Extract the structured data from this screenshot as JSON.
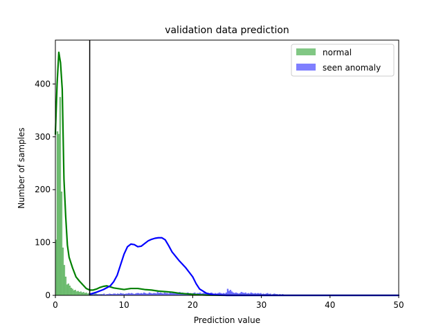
{
  "chart_data": {
    "type": "histogram",
    "title": "validation data prediction",
    "xlabel": "Prediction value",
    "ylabel": "Number of samples",
    "xlim": [
      0,
      50
    ],
    "ylim": [
      0,
      483
    ],
    "xticks": [
      0,
      10,
      20,
      30,
      40,
      50
    ],
    "yticks": [
      0,
      100,
      200,
      300,
      400
    ],
    "grid": false,
    "legend_position": "top-right",
    "threshold_line": {
      "x": 5.0,
      "color": "#000000"
    },
    "series": [
      {
        "name": "normal",
        "color": "#008000",
        "bar_color": "#81c784",
        "bars": {
          "bin_width": 0.2,
          "start": 0.0,
          "heights": [
            105,
            310,
            305,
            375,
            196,
            90,
            57,
            35,
            20,
            22,
            18,
            14,
            12,
            9,
            10,
            7,
            8,
            6,
            7,
            5,
            6,
            4,
            5,
            3,
            4,
            2,
            3,
            2,
            4,
            3,
            2,
            1,
            1,
            2,
            1,
            1,
            0,
            1,
            1,
            1,
            2,
            1,
            2,
            1,
            1,
            3,
            2,
            1,
            3,
            2,
            2,
            1,
            2,
            1,
            1,
            0,
            1,
            1,
            3,
            1,
            2,
            2,
            1,
            1,
            1,
            1,
            2,
            1,
            1,
            1,
            1,
            2,
            1,
            3,
            2,
            3,
            1,
            2,
            1,
            1
          ]
        },
        "kde": {
          "x": [
            0.0,
            0.25,
            0.5,
            0.75,
            1.0,
            1.25,
            1.5,
            1.75,
            2.0,
            2.5,
            3.0,
            3.5,
            4.0,
            4.5,
            5.0,
            5.5,
            6.0,
            6.5,
            7.0,
            7.5,
            8.0,
            8.5,
            9.0,
            10.0,
            11.0,
            12.0,
            13.0,
            14.0,
            15.0,
            16.0,
            17.0,
            18.0,
            19.0,
            20.0,
            21.0,
            22.0,
            25.0,
            30.0,
            40.0,
            50.0
          ],
          "y": [
            305,
            400,
            460,
            440,
            390,
            220,
            150,
            95,
            72,
            52,
            35,
            27,
            20,
            13,
            10,
            10,
            12,
            15,
            17,
            18,
            16,
            14,
            13,
            11,
            13,
            13,
            11,
            10,
            8,
            7,
            6,
            4,
            3,
            2,
            1,
            0.5,
            0,
            0,
            0,
            0
          ]
        }
      },
      {
        "name": "seen anomaly",
        "color": "#0000ff",
        "bar_color": "#7f7fff",
        "bars": {
          "bin_width": 0.2,
          "start": 5.0,
          "heights": [
            1,
            1,
            2,
            1,
            2,
            1,
            2,
            2,
            1,
            2,
            3,
            1,
            2,
            2,
            3,
            2,
            2,
            3,
            3,
            2,
            3,
            2,
            4,
            3,
            3,
            2,
            3,
            3,
            4,
            3,
            4,
            3,
            2,
            3,
            4,
            4,
            3,
            4,
            3,
            5,
            4,
            3,
            3,
            5,
            4,
            3,
            4,
            4,
            3,
            6,
            4,
            5,
            4,
            3,
            5,
            4,
            4,
            3,
            5,
            4,
            6,
            5,
            4,
            3,
            3,
            6,
            4,
            5,
            4,
            3,
            4,
            5,
            3,
            4,
            3,
            4,
            5,
            3,
            4,
            4,
            5,
            3,
            4,
            5,
            4,
            3,
            4,
            3,
            5,
            4,
            3,
            4,
            3,
            4,
            5,
            4,
            3,
            4,
            3,
            5,
            12,
            8,
            10,
            7,
            5,
            4,
            5,
            4,
            3,
            4,
            6,
            5,
            4,
            5,
            3,
            4,
            3,
            5,
            4,
            3,
            4,
            3,
            4,
            3,
            4,
            2,
            3,
            2,
            3,
            4,
            2,
            3,
            1,
            2,
            3,
            2,
            2,
            1,
            2,
            1,
            2,
            1,
            1,
            1,
            1,
            1,
            1,
            0,
            1,
            1
          ]
        },
        "kde": {
          "x": [
            5.0,
            6.0,
            7.0,
            8.0,
            8.5,
            9.0,
            9.5,
            10.0,
            10.5,
            11.0,
            11.5,
            12.0,
            12.5,
            13.0,
            13.5,
            14.0,
            14.5,
            15.0,
            15.5,
            16.0,
            16.5,
            17.0,
            17.5,
            18.0,
            19.0,
            20.0,
            20.5,
            21.0,
            22.0,
            23.0,
            25.0,
            30.0,
            40.0,
            50.0
          ],
          "y": [
            2,
            6,
            11,
            18,
            26,
            38,
            58,
            78,
            92,
            97,
            96,
            92,
            93,
            98,
            103,
            106,
            108,
            109,
            109,
            105,
            94,
            82,
            74,
            66,
            52,
            35,
            22,
            12,
            4,
            1,
            0,
            0,
            0,
            0
          ]
        }
      }
    ]
  }
}
